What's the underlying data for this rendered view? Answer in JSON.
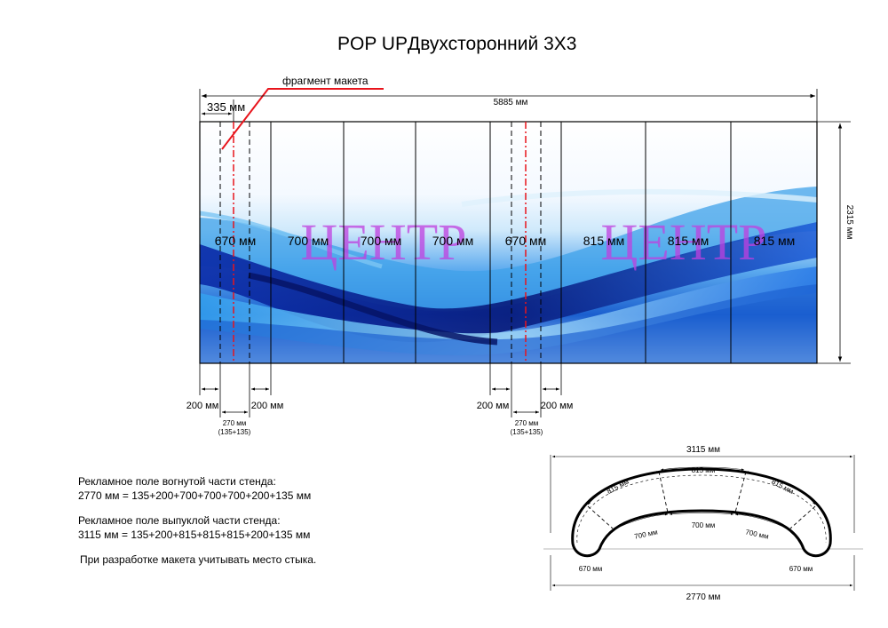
{
  "title": "POP UPДвухсторонний  3Х3",
  "fragment_label": "фрагмент макета",
  "total_width_label": "5885 мм",
  "edge_width_label": "335 мм",
  "height_label": "2315 мм",
  "watermark": "ЦЕНТР",
  "panel_labels": [
    "670 мм",
    "700 мм",
    "700 мм",
    "700 мм",
    "670 мм",
    "815 мм",
    "815 мм",
    "815 мм"
  ],
  "joint_left": {
    "left": "200 мм",
    "right": "200 мм",
    "overlap": "270 мм",
    "overlap_detail": "(135+135)"
  },
  "joint_right": {
    "left": "200 мм",
    "right": "200 мм",
    "overlap": "270 мм",
    "overlap_detail": "(135+135)"
  },
  "notes": {
    "concave_title": "Рекламное поле вогнутой части стенда:",
    "concave_formula": "2770 мм = 135+200+700+700+700+200+135 мм",
    "convex_title": "Рекламное поле выпуклой части стенда:",
    "convex_formula": "3115 мм = 135+200+815+815+815+200+135 мм",
    "joint_note": "При разработке макета учитывать место стыка."
  },
  "plan": {
    "outer_width": "3115 мм",
    "inner_width": "2770 мм",
    "outer_segments": [
      "815 мм",
      "815 мм",
      "815 мм"
    ],
    "inner_segments": [
      "700 мм",
      "700 мм",
      "700 мм"
    ],
    "end_left": "670 мм",
    "end_right": "670 мм"
  },
  "colors": {
    "guide_red": "#e8141c",
    "watermark": "#c040e0",
    "wave_dark": "#0a1e9c",
    "wave_mid": "#1e74e8",
    "wave_light": "#9fd4f6"
  }
}
